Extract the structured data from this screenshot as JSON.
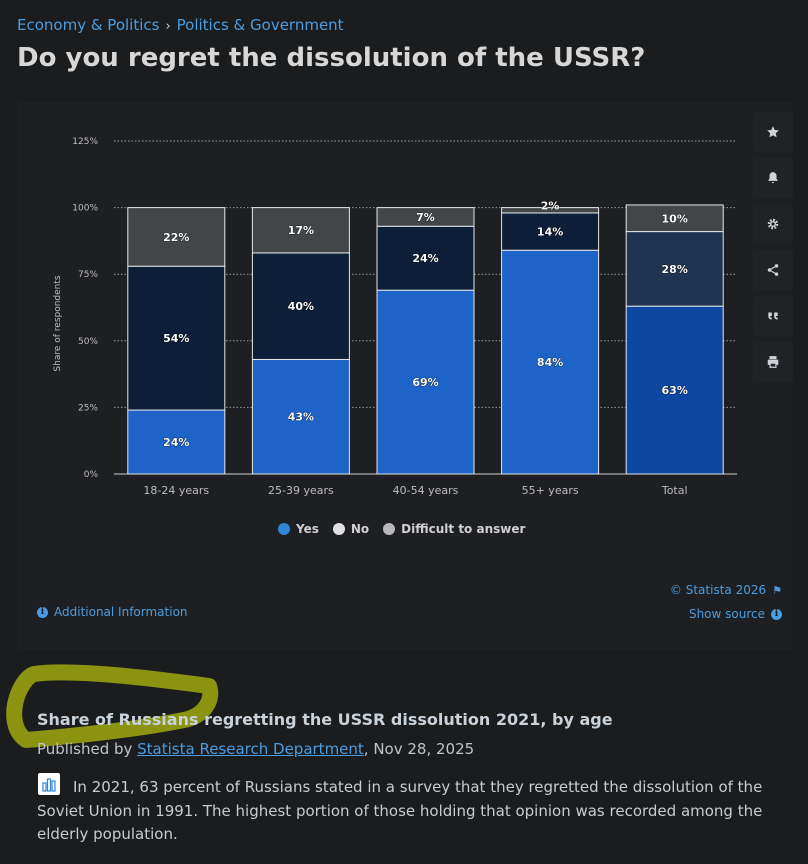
{
  "breadcrumb": {
    "item1": "Economy & Politics",
    "separator": "›",
    "item2": "Politics & Government"
  },
  "page_title": "Do you regret the dissolution of the USSR?",
  "tools": [
    {
      "icon": "star-icon",
      "glyph": "★"
    },
    {
      "icon": "bell-icon",
      "glyph": "🔔"
    },
    {
      "icon": "gear-icon",
      "glyph": "⚙"
    },
    {
      "icon": "share-icon",
      "glyph": "share"
    },
    {
      "icon": "quote-icon",
      "glyph": "❝"
    },
    {
      "icon": "print-icon",
      "glyph": "print"
    }
  ],
  "chart_data": {
    "type": "bar",
    "stacked": true,
    "categories": [
      "18-24 years",
      "25-39 years",
      "40-54 years",
      "55+ years",
      "Total"
    ],
    "series": [
      {
        "name": "Yes",
        "values": [
          24,
          43,
          69,
          84,
          63
        ],
        "color": "#1e63c8",
        "alt_color_total": "#0d47a1"
      },
      {
        "name": "No",
        "values": [
          54,
          40,
          24,
          14,
          28
        ],
        "color": "#0d1f38",
        "alt_color_total": "#1e3450"
      },
      {
        "name": "Difficult to answer",
        "values": [
          22,
          17,
          7,
          2,
          10
        ],
        "color": "#434649",
        "alt_color_total": "#434649"
      }
    ],
    "value_labels": [
      [
        "24%",
        "43%",
        "69%",
        "84%",
        "63%"
      ],
      [
        "54%",
        "40%",
        "24%",
        "14%",
        "28%"
      ],
      [
        "22%",
        "17%",
        "7%",
        "2%",
        "10%"
      ]
    ],
    "y_ticks": [
      "0%",
      "25%",
      "50%",
      "75%",
      "100%",
      "125%"
    ],
    "y_tick_values": [
      0,
      25,
      50,
      75,
      100,
      125
    ],
    "ylim": [
      0,
      125
    ],
    "ylabel": "Share of respondents",
    "xlabel": "",
    "grid": true,
    "legend_position": "bottom",
    "legend_dot_colors": [
      "#2f86d8",
      "#e0e0e0",
      "#b8b8b8"
    ]
  },
  "footer": {
    "copyright": "© Statista 2026",
    "show_source": "Show source",
    "additional_info": "Additional Information"
  },
  "statistic": {
    "title": "Share of Russians regretting the USSR dissolution 2021, by age",
    "published_prefix": "Published by ",
    "publisher": "Statista Research Department",
    "date": ", Nov 28, 2025",
    "description": "In 2021, 63 percent of Russians stated in a survey that they regretted the dissolution of the Soviet Union in 1991. The highest portion of those holding that opinion was recorded among the elderly population."
  },
  "colors": {
    "accent": "#4a9de0",
    "highlight_marker": "#8a9410"
  }
}
